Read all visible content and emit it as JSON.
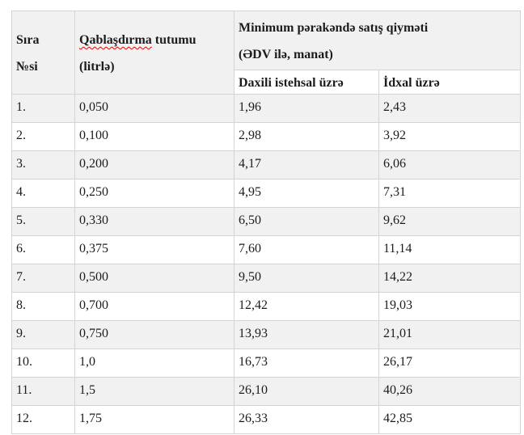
{
  "table": {
    "header": {
      "col_sira": {
        "line1": "Sıra",
        "line2": "№si"
      },
      "col_capacity": {
        "misspelled_word": "Qablaşdırma",
        "rest_line1": "tutumu",
        "line2": "(litrlə)"
      },
      "col_price_group": {
        "line1": "Minimum pərakəndə satış qiyməti",
        "line2": "(ƏDV ilə, manat)"
      },
      "col_domestic": "Daxili istehsal üzrə",
      "col_import": "İdxal üzrə"
    },
    "rows": [
      {
        "no": "1.",
        "capacity": "0,050",
        "domestic": "1,96",
        "import": "2,43"
      },
      {
        "no": "2.",
        "capacity": "0,100",
        "domestic": "2,98",
        "import": "3,92"
      },
      {
        "no": "3.",
        "capacity": "0,200",
        "domestic": "4,17",
        "import": "6,06"
      },
      {
        "no": "4.",
        "capacity": "0,250",
        "domestic": "4,95",
        "import": "7,31"
      },
      {
        "no": "5.",
        "capacity": "0,330",
        "domestic": "6,50",
        "import": "9,62"
      },
      {
        "no": "6.",
        "capacity": "0,375",
        "domestic": "7,60",
        "import": "11,14"
      },
      {
        "no": "7.",
        "capacity": "0,500",
        "domestic": "9,50",
        "import": "14,22"
      },
      {
        "no": "8.",
        "capacity": "0,700",
        "domestic": "12,42",
        "import": "19,03"
      },
      {
        "no": "9.",
        "capacity": "0,750",
        "domestic": "13,93",
        "import": "21,01"
      },
      {
        "no": "10.",
        "capacity": "1,0",
        "domestic": "16,73",
        "import": "26,17"
      },
      {
        "no": "11.",
        "capacity": "1,5",
        "domestic": "26,10",
        "import": "40,26"
      },
      {
        "no": "12.",
        "capacity": "1,75",
        "domestic": "26,33",
        "import": "42,85"
      }
    ]
  },
  "colors": {
    "row_shading": "#f1f1f2",
    "border": "#d4d4d4",
    "spellcheck_underline": "#e60000"
  }
}
